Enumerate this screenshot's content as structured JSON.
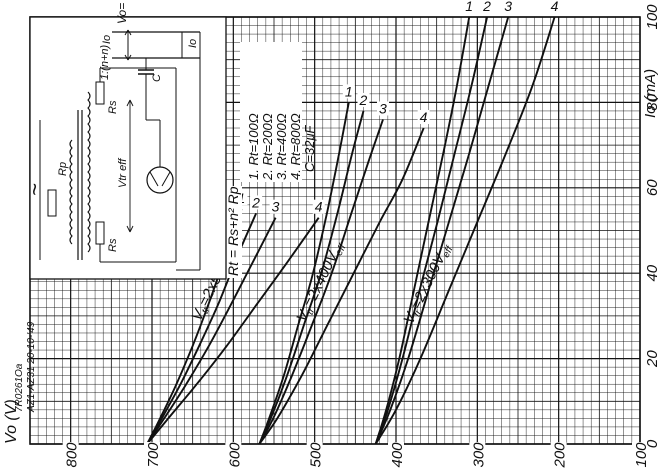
{
  "chart_data": {
    "type": "line",
    "x_axis": {
      "label": "Vo (V)",
      "range": [
        100,
        850
      ],
      "ticks": [
        800,
        700,
        600,
        500,
        400,
        300,
        200,
        100
      ]
    },
    "y_axis": {
      "label": "Io (mA)",
      "range": [
        0,
        100
      ],
      "ticks": [
        0,
        20,
        40,
        60,
        80,
        100
      ]
    },
    "grid": true,
    "groups": [
      {
        "name": "Vtr=2x500Veff",
        "series": [
          {
            "name": "1",
            "points": [
              [
                706,
                0
              ],
              [
                690,
                6
              ],
              [
                670,
                14
              ],
              [
                650,
                23
              ],
              [
                630,
                33
              ],
              [
                610,
                44
              ],
              [
                590,
                55
              ]
            ]
          },
          {
            "name": "2",
            "points": [
              [
                706,
                0
              ],
              [
                688,
                6
              ],
              [
                665,
                14
              ],
              [
                642,
                23
              ],
              [
                618,
                33
              ],
              [
                595,
                44
              ],
              [
                572,
                54
              ]
            ]
          },
          {
            "name": "3",
            "points": [
              [
                706,
                0
              ],
              [
                685,
                6
              ],
              [
                658,
                14
              ],
              [
                630,
                23
              ],
              [
                602,
                33
              ],
              [
                575,
                43
              ],
              [
                548,
                53
              ]
            ]
          },
          {
            "name": "4",
            "points": [
              [
                706,
                0
              ],
              [
                680,
                6
              ],
              [
                645,
                14
              ],
              [
                608,
                23
              ],
              [
                570,
                33
              ],
              [
                532,
                43
              ],
              [
                495,
                53
              ]
            ]
          }
        ]
      },
      {
        "name": "Vtr=2x400Veff",
        "series": [
          {
            "name": "1",
            "points": [
              [
                568,
                0
              ],
              [
                556,
                6
              ],
              [
                538,
                16
              ],
              [
                520,
                28
              ],
              [
                502,
                40
              ],
              [
                485,
                54
              ],
              [
                470,
                68
              ],
              [
                458,
                80
              ]
            ]
          },
          {
            "name": "2",
            "points": [
              [
                568,
                0
              ],
              [
                554,
                6
              ],
              [
                534,
                16
              ],
              [
                513,
                28
              ],
              [
                492,
                40
              ],
              [
                472,
                54
              ],
              [
                454,
                68
              ],
              [
                440,
                78
              ]
            ]
          },
          {
            "name": "3",
            "points": [
              [
                568,
                0
              ],
              [
                551,
                6
              ],
              [
                528,
                16
              ],
              [
                503,
                28
              ],
              [
                479,
                40
              ],
              [
                455,
                54
              ],
              [
                434,
                66
              ],
              [
                416,
                76
              ]
            ]
          },
          {
            "name": "4",
            "points": [
              [
                568,
                0
              ],
              [
                546,
                6
              ],
              [
                516,
                16
              ],
              [
                484,
                28
              ],
              [
                452,
                40
              ],
              [
                420,
                52
              ],
              [
                392,
                62
              ],
              [
                366,
                74
              ]
            ]
          }
        ]
      },
      {
        "name": "Vtr=2x300Veff",
        "series": [
          {
            "name": "1",
            "points": [
              [
                425,
                0
              ],
              [
                412,
                8
              ],
              [
                396,
                20
              ],
              [
                378,
                36
              ],
              [
                360,
                52
              ],
              [
                342,
                68
              ],
              [
                325,
                84
              ],
              [
                310,
                100
              ]
            ]
          },
          {
            "name": "2",
            "points": [
              [
                425,
                0
              ],
              [
                410,
                8
              ],
              [
                392,
                20
              ],
              [
                371,
                36
              ],
              [
                349,
                52
              ],
              [
                328,
                68
              ],
              [
                307,
                84
              ],
              [
                288,
                100
              ]
            ]
          },
          {
            "name": "3",
            "points": [
              [
                425,
                0
              ],
              [
                407,
                8
              ],
              [
                385,
                20
              ],
              [
                360,
                36
              ],
              [
                335,
                52
              ],
              [
                310,
                68
              ],
              [
                286,
                84
              ],
              [
                262,
                100
              ]
            ]
          },
          {
            "name": "4",
            "points": [
              [
                425,
                0
              ],
              [
                400,
                8
              ],
              [
                370,
                20
              ],
              [
                335,
                36
              ],
              [
                300,
                52
              ],
              [
                265,
                68
              ],
              [
                232,
                84
              ],
              [
                205,
                100
              ]
            ]
          }
        ]
      }
    ]
  },
  "group_labels": [
    {
      "v": "V",
      "sub": "tr",
      "main": "=2x500V",
      "eff": "eff"
    },
    {
      "v": "V",
      "sub": "tr",
      "main": "=2x400V",
      "eff": "eff"
    },
    {
      "v": "V",
      "sub": "tr",
      "main": "=2x300V",
      "eff": "eff"
    }
  ],
  "legend": {
    "items": [
      "1. Rt=100Ω",
      "2. Rt=200Ω",
      "3. Rt=400Ω",
      "4. Rt=800Ω"
    ],
    "capacitor": "C=32μF",
    "formula": "Rt = Rs+n² Rp"
  },
  "schematic": {
    "tilde": "~",
    "rp": "Rp",
    "ratio": "1:(n+n)",
    "rs_top": "Rs",
    "rs_bottom": "Rs",
    "vtr": "Vtr eff",
    "vo": "Vo=",
    "io_left": "Io",
    "io_right": "Io",
    "cap": "C"
  },
  "stamp": {
    "code": "7R0261Oa",
    "ref": "AZ1-AZ31 20-10-'49"
  }
}
